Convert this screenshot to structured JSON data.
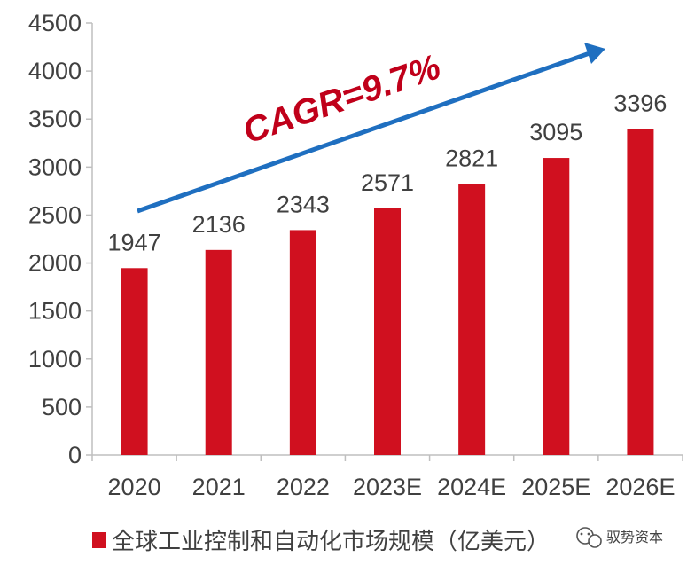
{
  "chart_data": {
    "type": "bar",
    "title": "",
    "xlabel": "",
    "ylabel": "",
    "categories": [
      "2020",
      "2021",
      "2022",
      "2023E",
      "2024E",
      "2025E",
      "2026E"
    ],
    "series": [
      {
        "name": "全球工业控制和自动化市场规模（亿美元）",
        "values": [
          1947,
          2136,
          2343,
          2571,
          2821,
          3095,
          3396
        ],
        "color": "#d0101f"
      }
    ],
    "ylim": [
      0,
      4500
    ],
    "yticks": [
      "0",
      "500",
      "1000",
      "1500",
      "2000",
      "2500",
      "3000",
      "3500",
      "4000",
      "4500"
    ],
    "data_labels": [
      "1947",
      "2136",
      "2343",
      "2571",
      "2821",
      "3095",
      "3396"
    ],
    "annotation": {
      "text": "CAGR=9.7%",
      "color": "#c0001a",
      "arrow_color": "#1f6fc0"
    },
    "grid": false,
    "legend_position": "bottom"
  },
  "watermark": {
    "text": "驭势资本",
    "icon": "wechat-icon"
  }
}
